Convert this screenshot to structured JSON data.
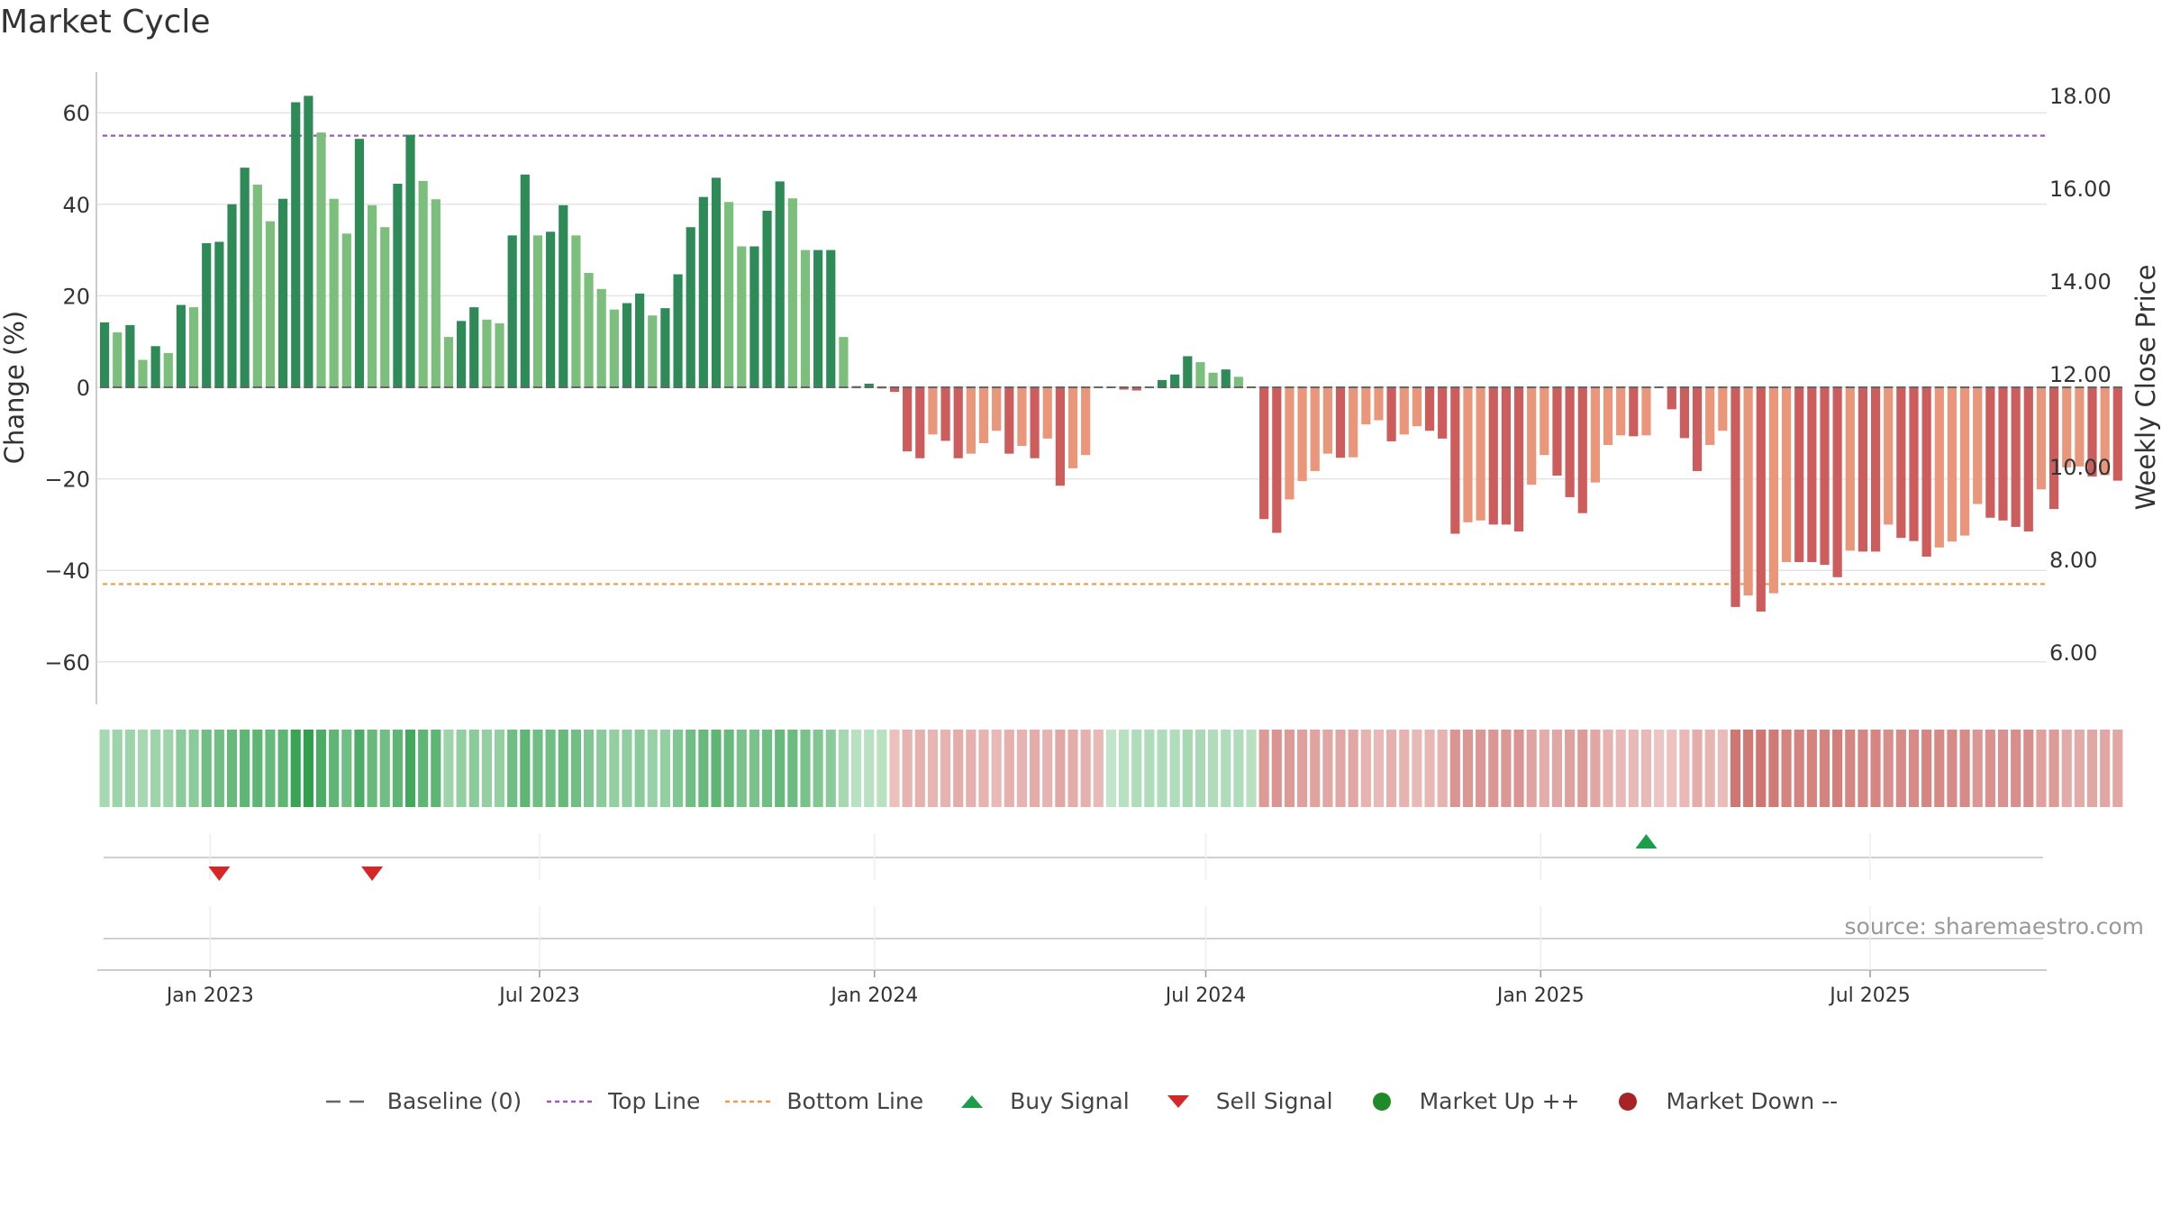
{
  "title": "Market Cycle",
  "source": "source: sharemaestro.com",
  "colors": {
    "bar_up_dark": "#2e8b57",
    "bar_up_light": "#7cbf7c",
    "bar_down_dark": "#cd5c5c",
    "bar_down_light": "#e9967a",
    "top_line": "#9b59b6",
    "bottom_line": "#e59c4c",
    "baseline": "#666666",
    "buy": "#1a9e4a",
    "sell": "#d62728",
    "market_up": "#1f8a28",
    "market_down": "#a82424"
  },
  "legend": [
    {
      "label": "Baseline (0)",
      "symbol": "dash-long",
      "color": "#666666"
    },
    {
      "label": "Top Line",
      "symbol": "dash-short",
      "color": "#9b59b6"
    },
    {
      "label": "Bottom Line",
      "symbol": "dash-short",
      "color": "#e59c4c"
    },
    {
      "label": "Buy Signal",
      "symbol": "triangle-up",
      "color": "#1a9e4a"
    },
    {
      "label": "Sell Signal",
      "symbol": "triangle-down",
      "color": "#d62728"
    },
    {
      "label": "Market Up ++",
      "symbol": "circle",
      "color": "#1f8a28"
    },
    {
      "label": "Market Down --",
      "symbol": "circle",
      "color": "#a82424"
    }
  ],
  "chart_data": {
    "type": "bar",
    "ylabel": "Change (%)",
    "ylabel_right": "Weekly Close Price",
    "ylim": [
      -70,
      70
    ],
    "yticks": [
      "60",
      "40",
      "20",
      "0",
      "−20",
      "−40",
      "−60"
    ],
    "ytick_values": [
      60,
      40,
      20,
      0,
      -20,
      -40,
      -60
    ],
    "y2ticks": [
      "18.00",
      "16.00",
      "14.00",
      "12.00",
      "10.00",
      "8.00",
      "6.00"
    ],
    "y2tick_values": [
      18,
      16,
      14,
      12,
      10,
      8,
      6
    ],
    "x_range": [
      "2022-10-31",
      "2025-10-06"
    ],
    "xticks": [
      "Jan 2023",
      "Jul 2023",
      "Jan 2024",
      "Jul 2024",
      "Jan 2025",
      "Jul 2025"
    ],
    "xtick_dates": [
      "2023-01-01",
      "2023-07-01",
      "2024-01-01",
      "2024-07-01",
      "2025-01-01",
      "2025-07-01"
    ],
    "top_line": 55,
    "bottom_line": -43,
    "baseline": 0,
    "start_week": "2022-11-04",
    "values": [
      14.2,
      12,
      13.6,
      6,
      9,
      7.5,
      18,
      17.5,
      31.5,
      31.8,
      40,
      48,
      44.3,
      36.3,
      41.2,
      62.3,
      63.7,
      55.7,
      41.2,
      33.6,
      54.3,
      39.8,
      35,
      44.5,
      55.2,
      45.1,
      41.1,
      11,
      14.5,
      17.5,
      14.8,
      14,
      33.2,
      46.5,
      33.2,
      34,
      39.8,
      33.2,
      25,
      21.5,
      17,
      18.4,
      20.5,
      15.7,
      17.3,
      24.7,
      35,
      41.6,
      45.8,
      40.5,
      30.8,
      30.8,
      38.6,
      45,
      41.3,
      30,
      30,
      30,
      11,
      0.3,
      0.8,
      -0.3,
      -1,
      -14,
      -15.5,
      -10.3,
      -11.7,
      -15.5,
      -14.5,
      -12.2,
      -9.5,
      -14.5,
      -12.8,
      -15.5,
      -11.2,
      -21.5,
      -17.7,
      -14.8,
      0,
      0,
      -0.5,
      -0.7,
      0,
      1.6,
      2.8,
      6.8,
      5.5,
      3.2,
      3.9,
      2.3,
      0,
      -28.8,
      -31.8,
      -24.5,
      -20.5,
      -18.3,
      -14.5,
      -15.4,
      -15.3,
      -8.1,
      -7.2,
      -11.8,
      -10.3,
      -8.5,
      -9.5,
      -11.2,
      -32,
      -29.5,
      -29.1,
      -30,
      -30,
      -31.5,
      -21.3,
      -14.8,
      -19.3,
      -24,
      -27.5,
      -20.8,
      -12.6,
      -10.5,
      -10.7,
      -10.5,
      0,
      -4.8,
      -11.1,
      -18.3,
      -12.6,
      -9.5,
      -48,
      -45.5,
      -49,
      -45,
      -38.2,
      -38.2,
      -38.2,
      -38.8,
      -41.5,
      -35.7,
      -35.9,
      -35.9,
      -30,
      -32.9,
      -33.6,
      -37,
      -35,
      -33.7,
      -32.4,
      -25.5,
      -28.5,
      -29.1,
      -30.5,
      -31.5,
      -22.3,
      -26.6,
      -17.5,
      -17.3,
      -19.5,
      -19.2,
      -20.4
    ],
    "heatmap_values": [
      0.3,
      0.35,
      0.35,
      0.3,
      0.35,
      0.35,
      0.45,
      0.45,
      0.6,
      0.6,
      0.65,
      0.7,
      0.7,
      0.65,
      0.7,
      0.9,
      0.95,
      0.8,
      0.7,
      0.6,
      0.8,
      0.65,
      0.6,
      0.7,
      0.85,
      0.7,
      0.7,
      0.35,
      0.4,
      0.45,
      0.4,
      0.4,
      0.6,
      0.7,
      0.6,
      0.6,
      0.65,
      0.6,
      0.5,
      0.45,
      0.4,
      0.42,
      0.45,
      0.38,
      0.4,
      0.5,
      0.6,
      0.65,
      0.7,
      0.65,
      0.55,
      0.55,
      0.6,
      0.65,
      0.62,
      0.55,
      0.5,
      0.45,
      0.3,
      0.2,
      0.2,
      0.2,
      -0.25,
      -0.35,
      -0.38,
      -0.33,
      -0.35,
      -0.4,
      -0.38,
      -0.35,
      -0.3,
      -0.38,
      -0.35,
      -0.4,
      -0.35,
      -0.45,
      -0.4,
      -0.38,
      -0.3,
      0.15,
      0.2,
      0.25,
      0.25,
      0.25,
      0.25,
      0.3,
      0.28,
      0.25,
      0.25,
      0.25,
      0.2,
      -0.55,
      -0.6,
      -0.55,
      -0.5,
      -0.48,
      -0.45,
      -0.45,
      -0.45,
      -0.35,
      -0.3,
      -0.38,
      -0.35,
      -0.3,
      -0.32,
      -0.35,
      -0.6,
      -0.58,
      -0.58,
      -0.58,
      -0.58,
      -0.6,
      -0.48,
      -0.4,
      -0.45,
      -0.5,
      -0.55,
      -0.45,
      -0.35,
      -0.3,
      -0.3,
      -0.3,
      -0.2,
      -0.22,
      -0.3,
      -0.4,
      -0.33,
      -0.28,
      -0.85,
      -0.82,
      -0.85,
      -0.82,
      -0.75,
      -0.75,
      -0.75,
      -0.75,
      -0.78,
      -0.72,
      -0.72,
      -0.72,
      -0.65,
      -0.68,
      -0.68,
      -0.72,
      -0.7,
      -0.68,
      -0.68,
      -0.58,
      -0.62,
      -0.62,
      -0.65,
      -0.65,
      -0.5,
      -0.55,
      -0.42,
      -0.42,
      -0.45,
      -0.45,
      -0.45
    ],
    "buy_signals": [
      "2025-02-28"
    ],
    "sell_signals": [
      "2023-01-06",
      "2023-03-31"
    ]
  }
}
